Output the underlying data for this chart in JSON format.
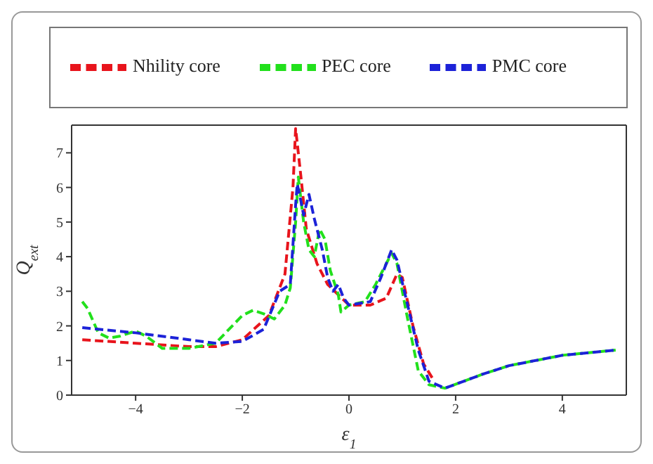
{
  "chart_data": {
    "type": "line",
    "xlabel": "ε$_{1}$",
    "ylabel": "Q$_{ext}$",
    "xlim": [
      -5.2,
      5.2
    ],
    "ylim": [
      0,
      7.8
    ],
    "xticks": [
      -4,
      -2,
      0,
      2,
      4
    ],
    "yticks": [
      0,
      1,
      2,
      3,
      4,
      5,
      6,
      7
    ],
    "grid": false,
    "legend": "top",
    "marker": "none",
    "line_style": "dashed",
    "series": [
      {
        "name": "Nhility core",
        "color": "#e8141c",
        "x": [
          -5,
          -4,
          -3,
          -2.5,
          -2,
          -1.5,
          -1.2,
          -1.05,
          -1,
          -0.9,
          -0.8,
          -0.6,
          -0.4,
          -0.2,
          0,
          0.4,
          0.7,
          0.9,
          1,
          1.2,
          1.4,
          1.6
        ],
        "values": [
          1.6,
          1.5,
          1.4,
          1.4,
          1.6,
          2.3,
          3.5,
          6,
          7.7,
          6.3,
          4.8,
          3.8,
          3.2,
          2.9,
          2.6,
          2.6,
          2.8,
          3.5,
          3.4,
          2,
          0.9,
          0.4
        ]
      },
      {
        "name": "PEC core",
        "color": "#22e01c",
        "x": [
          -5,
          -4.9,
          -4.7,
          -4.5,
          -4.3,
          -4,
          -3.8,
          -3.5,
          -3,
          -2.5,
          -2,
          -1.8,
          -1.6,
          -1.4,
          -1.2,
          -1.1,
          -1,
          -0.95,
          -0.85,
          -0.75,
          -0.65,
          -0.55,
          -0.45,
          -0.35,
          -0.2,
          -0.15,
          0,
          0.3,
          0.5,
          0.8,
          0.9,
          1.1,
          1.3,
          1.5,
          1.8,
          2.5,
          3,
          4,
          5
        ],
        "values": [
          2.7,
          2.5,
          1.8,
          1.65,
          1.7,
          1.85,
          1.7,
          1.35,
          1.35,
          1.5,
          2.3,
          2.45,
          2.35,
          2.2,
          2.6,
          3.1,
          5,
          6.3,
          5,
          4.2,
          4,
          4.8,
          4.5,
          3.6,
          2.9,
          2.4,
          2.6,
          2.7,
          3.2,
          4.1,
          3.8,
          2.2,
          0.7,
          0.3,
          0.2,
          0.6,
          0.85,
          1.15,
          1.3
        ]
      },
      {
        "name": "PMC core",
        "color": "#1c22d8",
        "x": [
          -5,
          -4,
          -3,
          -2.5,
          -2,
          -1.6,
          -1.3,
          -1.1,
          -1,
          -0.97,
          -0.9,
          -0.85,
          -0.75,
          -0.65,
          -0.5,
          -0.4,
          -0.3,
          -0.2,
          -0.1,
          0,
          0.4,
          0.6,
          0.8,
          0.9,
          1.1,
          1.3,
          1.5,
          1.8,
          2.5,
          3,
          4,
          5
        ],
        "values": [
          1.95,
          1.8,
          1.6,
          1.5,
          1.55,
          1.9,
          3,
          3.2,
          5.5,
          6.1,
          5.6,
          5.2,
          5.8,
          5.1,
          4.2,
          3.4,
          3,
          3.2,
          2.8,
          2.6,
          2.7,
          3.4,
          4.2,
          3.9,
          2.6,
          1.3,
          0.4,
          0.2,
          0.6,
          0.85,
          1.15,
          1.3
        ]
      }
    ]
  }
}
